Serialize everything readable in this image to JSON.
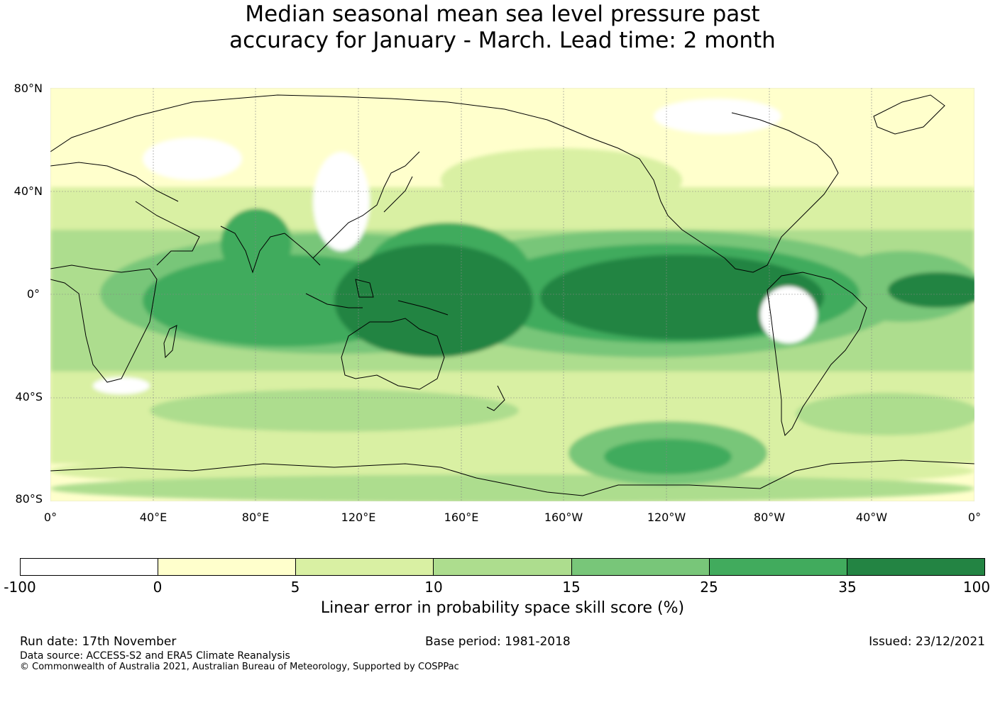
{
  "title": {
    "line1": "Median seasonal mean sea level pressure past",
    "line2": "accuracy for January - March. Lead time: 2 month"
  },
  "map": {
    "lat_labels": [
      "80°N",
      "40°N",
      "0°",
      "40°S",
      "80°S"
    ],
    "lon_labels": [
      "0°",
      "40°E",
      "80°E",
      "120°E",
      "160°E",
      "160°W",
      "120°W",
      "80°W",
      "40°W",
      "0°"
    ],
    "land_outline_color": "#000000",
    "grid_color": "#888888"
  },
  "legend": {
    "ticks": [
      "-100",
      "0",
      "5",
      "10",
      "15",
      "25",
      "35",
      "100"
    ],
    "colors": [
      "#ffffff",
      "#ffffcc",
      "#d9f0a3",
      "#addd8e",
      "#78c679",
      "#41ab5d",
      "#238443"
    ],
    "title": "Linear error in probability space skill score (%)"
  },
  "footer": {
    "run_date": "Run date: 17th November",
    "base_period": "Base period: 1981-2018",
    "issued": "Issued: 23/12/2021",
    "data_source": "Data source: ACCESS-S2 and ERA5 Climate Reanalysis",
    "copyright": "© Commonwealth of Australia 2021, Australian Bureau of Meteorology, Supported by COSPPac"
  }
}
